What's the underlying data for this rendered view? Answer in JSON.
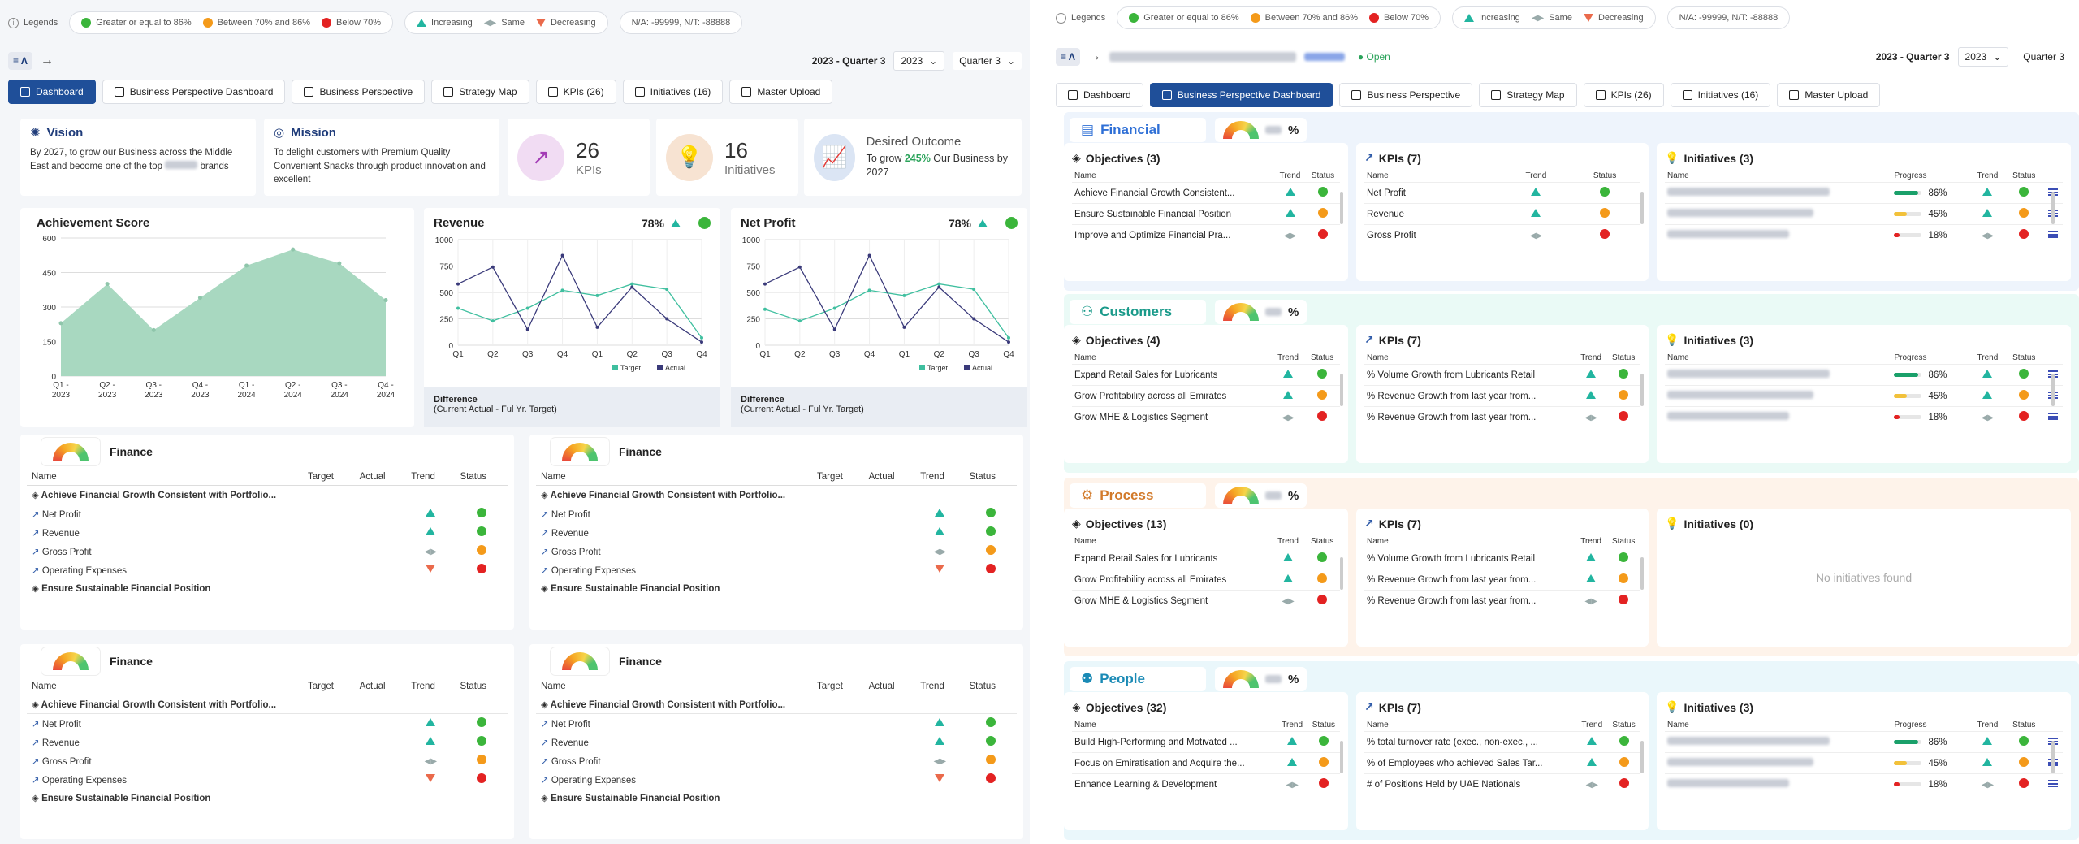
{
  "legend": {
    "label": "Legends",
    "ge86": "Greater or equal to 86%",
    "b70": "Between 70% and 86%",
    "lt70": "Below 70%",
    "inc": "Increasing",
    "same": "Same",
    "dec": "Decreasing",
    "na": "N/A: -99999, N/T: -88888"
  },
  "header": {
    "period": "2023 - Quarter 3",
    "year": "2023",
    "quarter": "Quarter 3"
  },
  "tabs": [
    "Dashboard",
    "Business Perspective Dashboard",
    "Business Perspective",
    "Strategy Map",
    "KPIs (26)",
    "Initiatives (16)",
    "Master Upload"
  ],
  "vision": {
    "title": "Vision",
    "text": "By 2027, to grow our Business across the Middle East and become one of the top",
    "text2": "brands"
  },
  "mission": {
    "title": "Mission",
    "text": "To delight customers with Premium Quality Convenient Snacks through product innovation and excellent"
  },
  "kpis": {
    "count": "26",
    "label": "KPIs"
  },
  "initiatives": {
    "count": "16",
    "label": "Initiatives"
  },
  "desired": {
    "title": "Desired Outcome",
    "pre": "To grow ",
    "highlight": "245%",
    "post": " Our Business by 2027"
  },
  "achievement": {
    "title": "Achievement Score"
  },
  "revenue": {
    "title": "Revenue",
    "pct": "78%"
  },
  "netprofit": {
    "title": "Net Profit",
    "pct": "78%"
  },
  "diff": {
    "title": "Difference",
    "sub": "(Current Actual - Ful Yr. Target)"
  },
  "chart_data": [
    {
      "type": "area",
      "title": "Achievement Score",
      "categories": [
        "Q1 - 2023",
        "Q2 - 2023",
        "Q3 - 2023",
        "Q4 - 2023",
        "Q1 - 2024",
        "Q2 - 2024",
        "Q3 - 2024",
        "Q4 - 2024"
      ],
      "values": [
        230,
        400,
        200,
        340,
        480,
        550,
        490,
        330
      ],
      "ylim": [
        0,
        600
      ],
      "yticks": [
        0,
        150,
        300,
        450,
        600
      ]
    },
    {
      "type": "line",
      "title": "Revenue",
      "categories": [
        "Q1",
        "Q2",
        "Q3",
        "Q4",
        "Q1",
        "Q2",
        "Q3",
        "Q4"
      ],
      "series": [
        {
          "name": "Target",
          "values": [
            350,
            230,
            350,
            520,
            470,
            580,
            530,
            70
          ]
        },
        {
          "name": "Actual",
          "values": [
            580,
            740,
            150,
            850,
            170,
            550,
            250,
            30
          ]
        }
      ],
      "ylim": [
        0,
        1000
      ],
      "yticks": [
        0,
        250,
        500,
        750,
        1000
      ]
    },
    {
      "type": "line",
      "title": "Net Profit",
      "categories": [
        "Q1",
        "Q2",
        "Q3",
        "Q4",
        "Q1",
        "Q2",
        "Q3",
        "Q4"
      ],
      "series": [
        {
          "name": "Target",
          "values": [
            340,
            230,
            350,
            520,
            470,
            580,
            530,
            70
          ]
        },
        {
          "name": "Actual",
          "values": [
            580,
            740,
            150,
            850,
            170,
            550,
            250,
            30
          ]
        }
      ],
      "ylim": [
        0,
        1000
      ],
      "yticks": [
        0,
        250,
        500,
        750,
        1000
      ]
    }
  ],
  "finance": {
    "title": "Finance",
    "cols": [
      "Name",
      "Target",
      "Actual",
      "Trend",
      "Status"
    ],
    "obj1": "Achieve Financial Growth Consistent with Portfolio...",
    "rows": [
      "Net Profit",
      "Revenue",
      "Gross Profit",
      "Operating Expenses"
    ],
    "obj2": "Ensure Sustainable Financial Position"
  },
  "right": {
    "open": "Open",
    "sections": [
      {
        "name": "Financial",
        "obj": "Objectives (3)",
        "kpi": "KPIs (7)",
        "ini": "Initiatives (3)",
        "objs": [
          "Achieve Financial Growth Consistent...",
          "Ensure Sustainable Financial Position",
          "Improve and Optimize Financial Pra..."
        ],
        "kpis": [
          "Net Profit",
          "Revenue",
          "Gross Profit"
        ]
      },
      {
        "name": "Customers",
        "obj": "Objectives (4)",
        "kpi": "KPIs (7)",
        "ini": "Initiatives (3)",
        "objs": [
          "Expand Retail Sales for Lubricants",
          "Grow Profitability across all Emirates",
          "Grow MHE & Logistics Segment"
        ],
        "kpis": [
          "% Volume Growth from Lubricants Retail",
          "% Revenue Growth from last year from...",
          "% Revenue Growth from last year from..."
        ]
      },
      {
        "name": "Process",
        "obj": "Objectives (13)",
        "kpi": "KPIs (7)",
        "ini": "Initiatives (0)",
        "objs": [
          "Expand Retail Sales for Lubricants",
          "Grow Profitability across all Emirates",
          "Grow MHE & Logistics Segment"
        ],
        "kpis": [
          "% Volume Growth from Lubricants Retail",
          "% Revenue Growth from last year from...",
          "% Revenue Growth from last year from..."
        ],
        "empty": "No initiatives found"
      },
      {
        "name": "People",
        "obj": "Objectives (32)",
        "kpi": "KPIs (7)",
        "ini": "Initiatives (3)",
        "objs": [
          "Build High-Performing and Motivated ...",
          "Focus on Emiratisation and Acquire the...",
          "Enhance Learning & Development"
        ],
        "kpis": [
          "% total turnover rate (exec., non-exec., ...",
          "% of Employees who achieved Sales Tar...",
          "# of Positions Held by UAE Nationals"
        ]
      }
    ],
    "cols": {
      "name": "Name",
      "trend": "Trend",
      "status": "Status",
      "progress": "Progress"
    },
    "progress": [
      "86%",
      "45%",
      "18%"
    ]
  }
}
